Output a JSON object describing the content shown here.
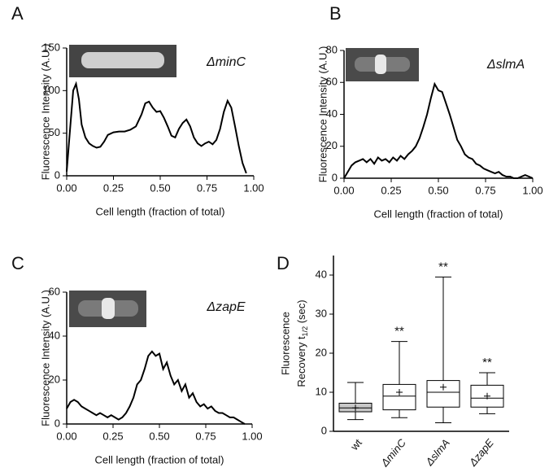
{
  "chart_data": [
    {
      "type": "line",
      "panel_label": "A",
      "annotation": "ΔminC",
      "ylabel": "Fluorescence Intensity (A.U.)",
      "xlabel": "Cell length (fraction of total)",
      "color": "#000000",
      "xlim": [
        0,
        1
      ],
      "ylim": [
        0,
        150
      ],
      "xticks": [
        {
          "value": 0,
          "label": "0.00"
        },
        {
          "value": 0.25,
          "label": "0.25"
        },
        {
          "value": 0.5,
          "label": "0.50"
        },
        {
          "value": 0.75,
          "label": "0.75"
        },
        {
          "value": 1,
          "label": "1.00"
        }
      ],
      "yticks": [
        0,
        50,
        100,
        150
      ],
      "x": [
        0,
        0.02,
        0.035,
        0.05,
        0.065,
        0.08,
        0.1,
        0.12,
        0.14,
        0.16,
        0.18,
        0.2,
        0.22,
        0.25,
        0.28,
        0.31,
        0.34,
        0.37,
        0.4,
        0.42,
        0.44,
        0.46,
        0.48,
        0.5,
        0.52,
        0.54,
        0.56,
        0.58,
        0.6,
        0.62,
        0.64,
        0.66,
        0.68,
        0.7,
        0.72,
        0.74,
        0.76,
        0.78,
        0.8,
        0.82,
        0.84,
        0.86,
        0.88,
        0.9,
        0.92,
        0.94,
        0.96
      ],
      "values": [
        5,
        60,
        100,
        108,
        90,
        60,
        45,
        38,
        35,
        33,
        34,
        40,
        48,
        51,
        52,
        52,
        54,
        58,
        72,
        85,
        87,
        80,
        75,
        76,
        68,
        58,
        47,
        45,
        55,
        62,
        66,
        58,
        45,
        38,
        35,
        38,
        40,
        37,
        42,
        55,
        75,
        88,
        80,
        58,
        35,
        15,
        3
      ]
    },
    {
      "type": "line",
      "panel_label": "B",
      "annotation": "ΔslmA",
      "ylabel": "Fluorescence Intensity (A.U.)",
      "xlabel": "Cell length (fraction of total)",
      "color": "#000000",
      "xlim": [
        0,
        1
      ],
      "ylim": [
        0,
        80
      ],
      "xticks": [
        {
          "value": 0,
          "label": "0.00"
        },
        {
          "value": 0.25,
          "label": "0.25"
        },
        {
          "value": 0.5,
          "label": "0.50"
        },
        {
          "value": 0.75,
          "label": "0.75"
        },
        {
          "value": 1,
          "label": "1.00"
        }
      ],
      "yticks": [
        0,
        20,
        40,
        60,
        80
      ],
      "x": [
        0,
        0.02,
        0.04,
        0.06,
        0.08,
        0.1,
        0.12,
        0.14,
        0.16,
        0.18,
        0.2,
        0.22,
        0.24,
        0.26,
        0.28,
        0.3,
        0.32,
        0.34,
        0.36,
        0.38,
        0.4,
        0.42,
        0.44,
        0.46,
        0.48,
        0.5,
        0.52,
        0.54,
        0.56,
        0.58,
        0.6,
        0.62,
        0.64,
        0.66,
        0.68,
        0.7,
        0.72,
        0.74,
        0.76,
        0.78,
        0.8,
        0.82,
        0.84,
        0.86,
        0.88,
        0.9,
        0.92,
        0.94,
        0.96,
        0.98,
        1.0
      ],
      "values": [
        0,
        4,
        8,
        10,
        11,
        12,
        10,
        12,
        9,
        13,
        11,
        12,
        10,
        13,
        11,
        14,
        12,
        15,
        17,
        20,
        25,
        32,
        40,
        50,
        59,
        55,
        54,
        47,
        40,
        32,
        24,
        20,
        15,
        13,
        12,
        9,
        8,
        6,
        5,
        4,
        3,
        4,
        2,
        1,
        1,
        0,
        0,
        1,
        2,
        1,
        0
      ]
    },
    {
      "type": "line",
      "panel_label": "C",
      "annotation": "ΔzapE",
      "ylabel": "Fluorescence Intensity (A.U.)",
      "xlabel": "Cell length (fraction of total)",
      "color": "#000000",
      "xlim": [
        0,
        1
      ],
      "ylim": [
        0,
        60
      ],
      "xticks": [
        {
          "value": 0,
          "label": "0.00"
        },
        {
          "value": 0.25,
          "label": "0.25"
        },
        {
          "value": 0.5,
          "label": "0.50"
        },
        {
          "value": 0.75,
          "label": "0.75"
        },
        {
          "value": 1,
          "label": "1.00"
        }
      ],
      "yticks": [
        0,
        20,
        40,
        60
      ],
      "x": [
        0,
        0.02,
        0.04,
        0.06,
        0.08,
        0.1,
        0.12,
        0.14,
        0.16,
        0.18,
        0.2,
        0.22,
        0.24,
        0.26,
        0.28,
        0.3,
        0.32,
        0.34,
        0.36,
        0.38,
        0.4,
        0.42,
        0.44,
        0.46,
        0.48,
        0.5,
        0.52,
        0.54,
        0.56,
        0.58,
        0.6,
        0.62,
        0.64,
        0.66,
        0.68,
        0.7,
        0.72,
        0.74,
        0.76,
        0.78,
        0.8,
        0.82,
        0.84,
        0.86,
        0.88,
        0.9,
        0.92,
        0.94,
        0.96
      ],
      "values": [
        7,
        10,
        11,
        10,
        8,
        7,
        6,
        5,
        4,
        5,
        4,
        3,
        4,
        3,
        2,
        3,
        5,
        8,
        12,
        18,
        20,
        25,
        31,
        33,
        31,
        32,
        25,
        28,
        22,
        18,
        20,
        15,
        18,
        12,
        14,
        10,
        8,
        9,
        7,
        8,
        6,
        5,
        5,
        4,
        3,
        3,
        2,
        1,
        0
      ]
    },
    {
      "type": "box",
      "panel_label": "D",
      "ylabel": {
        "line1": "Fluorescence",
        "line2": "Recovery t",
        "sub": "1/2",
        "tail": " (sec)"
      },
      "categories": [
        "wt",
        "ΔminC",
        "ΔslmA",
        "ΔzapE"
      ],
      "fills": [
        "#c8c8c8",
        "#ffffff",
        "#ffffff",
        "#ffffff"
      ],
      "ylim": [
        0,
        45
      ],
      "yticks": [
        0,
        10,
        20,
        30,
        40
      ],
      "boxes": [
        {
          "min": 3,
          "q1": 5,
          "median": 6,
          "q3": 7.2,
          "max": 12.5,
          "mean": 6
        },
        {
          "min": 3.5,
          "q1": 5.5,
          "median": 9,
          "q3": 12,
          "max": 23,
          "mean": 10
        },
        {
          "min": 2.2,
          "q1": 6.2,
          "median": 10,
          "q3": 13,
          "max": 39.5,
          "mean": 11.3
        },
        {
          "min": 4.5,
          "q1": 6.2,
          "median": 8.5,
          "q3": 11.8,
          "max": 15,
          "mean": 9
        }
      ],
      "annotations": [
        null,
        "**",
        "**",
        "**"
      ]
    }
  ]
}
